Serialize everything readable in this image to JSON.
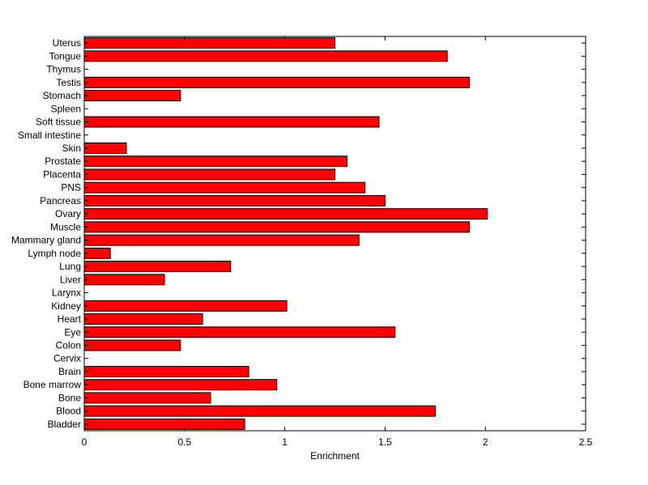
{
  "chart_data": {
    "type": "bar",
    "orientation": "horizontal",
    "xlabel": "Enrichment",
    "ylabel": "",
    "title": "",
    "xlim": [
      0,
      2.5
    ],
    "xticks": [
      0,
      0.5,
      1,
      1.5,
      2,
      2.5
    ],
    "xtick_labels": [
      "0",
      "0.5",
      "1",
      "1.5",
      "2",
      "2.5"
    ],
    "grid": false,
    "legend": "none",
    "bar_color": "#ff0000",
    "bar_edge_color": "#000000",
    "categories": [
      "Uterus",
      "Tongue",
      "Thymus",
      "Testis",
      "Stomach",
      "Spleen",
      "Soft tissue",
      "Small intestine",
      "Skin",
      "Prostate",
      "Placenta",
      "PNS",
      "Pancreas",
      "Ovary",
      "Muscle",
      "Mammary gland",
      "Lymph node",
      "Lung",
      "Liver",
      "Larynx",
      "Kidney",
      "Heart",
      "Eye",
      "Colon",
      "Cervix",
      "Brain",
      "Bone marrow",
      "Bone",
      "Blood",
      "Bladder"
    ],
    "values": [
      1.25,
      1.81,
      0,
      1.92,
      0.48,
      0,
      1.47,
      0,
      0.21,
      1.31,
      1.25,
      1.4,
      1.5,
      2.01,
      1.92,
      1.37,
      0.13,
      0.73,
      0.4,
      0,
      1.01,
      0.59,
      1.55,
      0.48,
      0,
      0.82,
      0.96,
      0.63,
      1.75,
      0.8
    ]
  }
}
